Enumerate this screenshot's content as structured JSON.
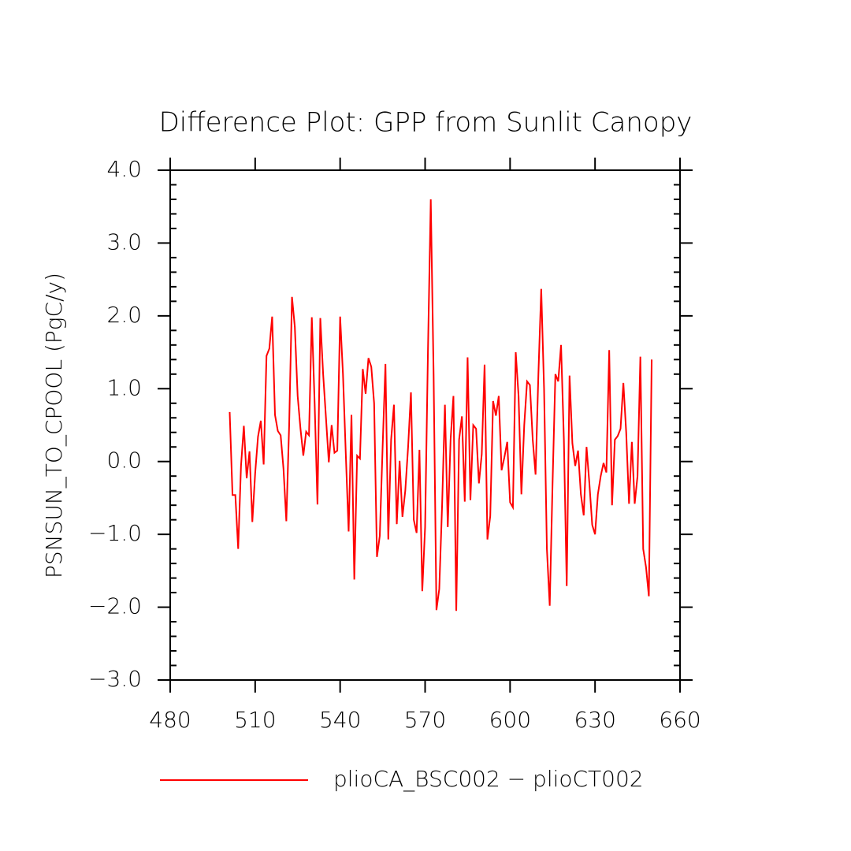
{
  "chart_data": {
    "type": "line",
    "title": "Difference Plot: GPP from Sunlit Canopy",
    "y_label": "PSNSUN_TO_CPOOL  (PgC/y)",
    "x": [
      501,
      502,
      503,
      504,
      505,
      506,
      507,
      508,
      509,
      510,
      511,
      512,
      513,
      514,
      515,
      516,
      517,
      518,
      519,
      520,
      521,
      522,
      523,
      524,
      525,
      526,
      527,
      528,
      529,
      530,
      531,
      532,
      533,
      534,
      535,
      536,
      537,
      538,
      539,
      540,
      541,
      542,
      543,
      544,
      545,
      546,
      547,
      548,
      549,
      550,
      551,
      552,
      553,
      554,
      555,
      556,
      557,
      558,
      559,
      560,
      561,
      562,
      563,
      564,
      565,
      566,
      567,
      568,
      569,
      570,
      571,
      572,
      573,
      574,
      575,
      576,
      577,
      578,
      579,
      580,
      581,
      582,
      583,
      584,
      585,
      586,
      587,
      588,
      589,
      590,
      591,
      592,
      593,
      594,
      595,
      596,
      597,
      598,
      599,
      600,
      601,
      602,
      603,
      604,
      605,
      606,
      607,
      608,
      609,
      610,
      611,
      612,
      613,
      614,
      615,
      616,
      617,
      618,
      619,
      620,
      621,
      622,
      623,
      624,
      625,
      626,
      627,
      628,
      629,
      630,
      631,
      632,
      633,
      634,
      635,
      636,
      637,
      638,
      639,
      640,
      641,
      642,
      643,
      644,
      645,
      646,
      647,
      648,
      649,
      650
    ],
    "series": [
      {
        "name": "plioCA_BSC002 − plioCT002",
        "color": "#ff0000",
        "values": [
          0.68,
          -0.46,
          -0.46,
          -1.2,
          -0.06,
          0.49,
          -0.23,
          0.14,
          -0.83,
          -0.16,
          0.34,
          0.56,
          -0.04,
          1.45,
          1.55,
          1.99,
          0.64,
          0.42,
          0.36,
          -0.1,
          -0.82,
          0.5,
          2.26,
          1.85,
          0.9,
          0.45,
          0.08,
          0.41,
          0.36,
          1.98,
          0.8,
          -0.59,
          1.97,
          1.2,
          0.6,
          -0.01,
          0.5,
          0.12,
          0.15,
          1.99,
          1.2,
          0.1,
          -0.96,
          0.64,
          -1.62,
          0.08,
          0.04,
          1.27,
          0.93,
          1.42,
          1.3,
          0.8,
          -1.31,
          -1.02,
          0.2,
          1.34,
          -1.07,
          0.3,
          0.78,
          -0.86,
          0.01,
          -0.76,
          -0.4,
          0.2,
          0.95,
          -0.8,
          -0.98,
          0.16,
          -1.78,
          -0.9,
          1.5,
          3.6,
          1.2,
          -2.04,
          -1.75,
          -0.6,
          0.78,
          -0.9,
          0.3,
          0.9,
          -2.05,
          0.3,
          0.62,
          -0.55,
          1.43,
          -0.53,
          0.5,
          0.45,
          -0.3,
          0.1,
          1.33,
          -1.07,
          -0.75,
          0.83,
          0.63,
          0.9,
          -0.12,
          0.06,
          0.27,
          -0.56,
          -0.63,
          1.5,
          0.9,
          -0.45,
          0.5,
          1.1,
          1.05,
          0.3,
          -0.18,
          1.2,
          2.37,
          1.0,
          -1.2,
          -1.98,
          -0.3,
          1.2,
          1.1,
          1.6,
          0.3,
          -1.71,
          1.18,
          0.25,
          -0.06,
          0.15,
          -0.45,
          -0.74,
          0.2,
          -0.3,
          -0.87,
          -1.0,
          -0.45,
          -0.2,
          -0.02,
          -0.15,
          1.53,
          -0.6,
          0.3,
          0.35,
          0.45,
          1.08,
          0.4,
          -0.58,
          0.27,
          -0.58,
          -0.2,
          1.44,
          -1.2,
          -1.45,
          -1.85,
          1.4
        ]
      }
    ],
    "xlim": [
      480,
      660
    ],
    "xticks": [
      480,
      510,
      540,
      570,
      600,
      630,
      660
    ],
    "ylim": [
      -3,
      4
    ],
    "yticks": [
      {
        "value": -3,
        "label": "−3.0"
      },
      {
        "value": -2,
        "label": "−2.0"
      },
      {
        "value": -1,
        "label": "−1.0"
      },
      {
        "value": 0,
        "label": "0.0"
      },
      {
        "value": 1,
        "label": "1.0"
      },
      {
        "value": 2,
        "label": "2.0"
      },
      {
        "value": 3,
        "label": "3.0"
      },
      {
        "value": 4,
        "label": "4.0"
      }
    ],
    "yminorticks": [
      -2.8,
      -2.6,
      -2.4,
      -2.2,
      -1.8,
      -1.6,
      -1.4,
      -1.2,
      -0.8,
      -0.6,
      -0.4,
      -0.2,
      0.2,
      0.4,
      0.6,
      0.8,
      1.2,
      1.4,
      1.6,
      1.8,
      2.2,
      2.4,
      2.6,
      2.8,
      3.2,
      3.4,
      3.6,
      3.8
    ],
    "grid": false
  }
}
